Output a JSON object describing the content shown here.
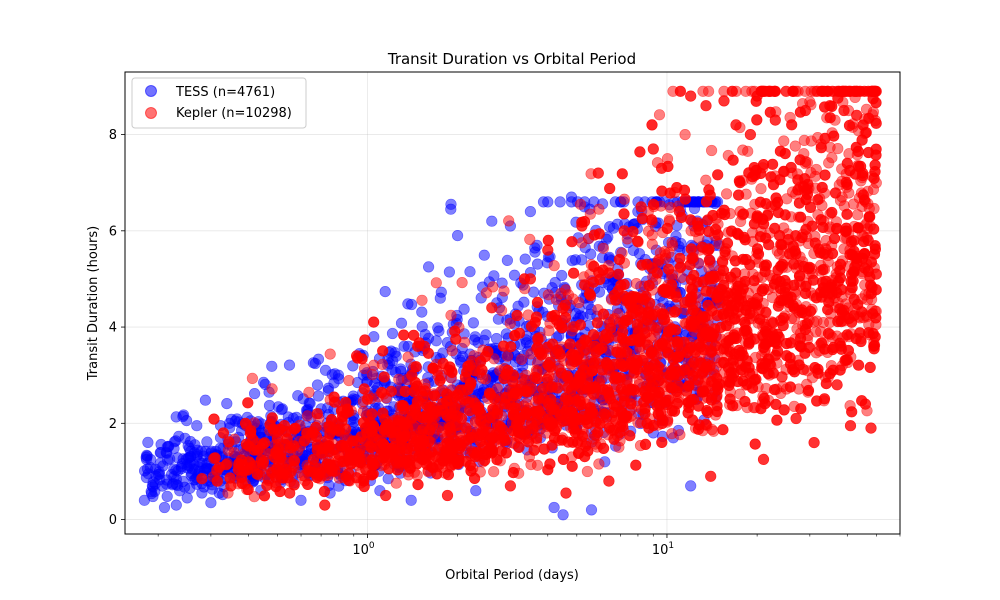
{
  "chart_data": {
    "type": "scatter",
    "title": "Transit Duration vs Orbital Period",
    "xlabel": "Orbital Period (days)",
    "ylabel": "Transit Duration (hours)",
    "xscale": "log",
    "xlim": [
      0.155,
      60
    ],
    "ylim": [
      -0.3,
      9.3
    ],
    "x_ticks": [
      {
        "value": 1,
        "base": "10",
        "exp": "0"
      },
      {
        "value": 10,
        "base": "10",
        "exp": "1"
      }
    ],
    "y_ticks": [
      0,
      2,
      4,
      6,
      8
    ],
    "grid": true,
    "legend_position": "upper-left",
    "series": [
      {
        "name": "TESS (n=4761)",
        "color": "#0000ff",
        "alpha": 0.5,
        "x_range": [
          0.18,
          15
        ],
        "points": [
          [
            0.18,
            0.4
          ],
          [
            0.21,
            0.25
          ],
          [
            0.23,
            0.3
          ],
          [
            0.25,
            0.45
          ],
          [
            0.26,
            1.05
          ],
          [
            0.28,
            0.75
          ],
          [
            0.3,
            0.35
          ],
          [
            0.32,
            0.55
          ],
          [
            0.34,
            1.0
          ],
          [
            0.36,
            1.3
          ],
          [
            0.38,
            1.85
          ],
          [
            0.4,
            1.55
          ],
          [
            0.43,
            0.9
          ],
          [
            0.45,
            2.85
          ],
          [
            0.48,
            1.65
          ],
          [
            0.52,
            2.3
          ],
          [
            0.55,
            1.2
          ],
          [
            0.6,
            0.4
          ],
          [
            0.62,
            1.8
          ],
          [
            0.7,
            2.3
          ],
          [
            0.75,
            0.55
          ],
          [
            0.8,
            3.0
          ],
          [
            0.85,
            2.2
          ],
          [
            0.9,
            1.6
          ],
          [
            0.95,
            3.4
          ],
          [
            1.05,
            3.8
          ],
          [
            1.1,
            0.6
          ],
          [
            1.2,
            3.5
          ],
          [
            1.3,
            2.9
          ],
          [
            1.4,
            0.4
          ],
          [
            1.5,
            3.6
          ],
          [
            1.6,
            5.25
          ],
          [
            1.75,
            4.6
          ],
          [
            1.9,
            6.55
          ],
          [
            2.0,
            5.9
          ],
          [
            2.2,
            5.15
          ],
          [
            2.3,
            0.6
          ],
          [
            2.6,
            6.2
          ],
          [
            3.0,
            6.1
          ],
          [
            3.5,
            6.4
          ],
          [
            4.0,
            6.6
          ],
          [
            4.2,
            0.25
          ],
          [
            4.5,
            0.1
          ],
          [
            4.8,
            6.7
          ],
          [
            5.3,
            6.5
          ],
          [
            5.6,
            0.2
          ],
          [
            6.2,
            1.2
          ],
          [
            7.0,
            6.6
          ],
          [
            8.0,
            6.4
          ],
          [
            9.0,
            1.8
          ],
          [
            10.5,
            1.7
          ],
          [
            12.0,
            0.7
          ]
        ]
      },
      {
        "name": "Kepler (n=10298)",
        "color": "#ff0000",
        "alpha": 0.5,
        "x_range": [
          0.3,
          50
        ],
        "points": [
          [
            0.28,
            0.85
          ],
          [
            0.35,
            0.7
          ],
          [
            0.45,
            1.2
          ],
          [
            0.55,
            0.55
          ],
          [
            0.68,
            2.2
          ],
          [
            0.72,
            0.3
          ],
          [
            0.8,
            1.85
          ],
          [
            0.92,
            3.4
          ],
          [
            1.0,
            2.5
          ],
          [
            1.15,
            0.5
          ],
          [
            1.35,
            1.4
          ],
          [
            1.55,
            3.6
          ],
          [
            1.85,
            0.5
          ],
          [
            2.2,
            3.2
          ],
          [
            2.6,
            4.4
          ],
          [
            3.0,
            0.7
          ],
          [
            3.5,
            5.0
          ],
          [
            4.0,
            5.6
          ],
          [
            4.6,
            0.55
          ],
          [
            5.2,
            6.1
          ],
          [
            5.9,
            7.2
          ],
          [
            6.4,
            0.8
          ],
          [
            7.2,
            6.0
          ],
          [
            8.2,
            6.5
          ],
          [
            9.0,
            7.7
          ],
          [
            9.6,
            7.3
          ],
          [
            11.0,
            6.4
          ],
          [
            12.0,
            8.8
          ],
          [
            13.5,
            8.6
          ],
          [
            14.0,
            0.9
          ],
          [
            15.5,
            8.7
          ],
          [
            17.0,
            8.2
          ],
          [
            19.0,
            8.0
          ],
          [
            20.0,
            8.8
          ],
          [
            21.0,
            1.25
          ],
          [
            23.0,
            8.3
          ],
          [
            25.0,
            8.9
          ],
          [
            27.0,
            2.1
          ],
          [
            29.0,
            8.5
          ],
          [
            31.0,
            1.6
          ],
          [
            33.0,
            8.9
          ],
          [
            35.0,
            8.6
          ],
          [
            37.0,
            2.8
          ],
          [
            39.0,
            8.5
          ],
          [
            41.0,
            1.95
          ],
          [
            43.0,
            8.4
          ],
          [
            45.0,
            7.2
          ],
          [
            46.0,
            2.4
          ],
          [
            47.0,
            5.8
          ],
          [
            48.0,
            1.9
          ],
          [
            49.0,
            3.6
          ],
          [
            50.0,
            5.1
          ]
        ]
      }
    ]
  }
}
